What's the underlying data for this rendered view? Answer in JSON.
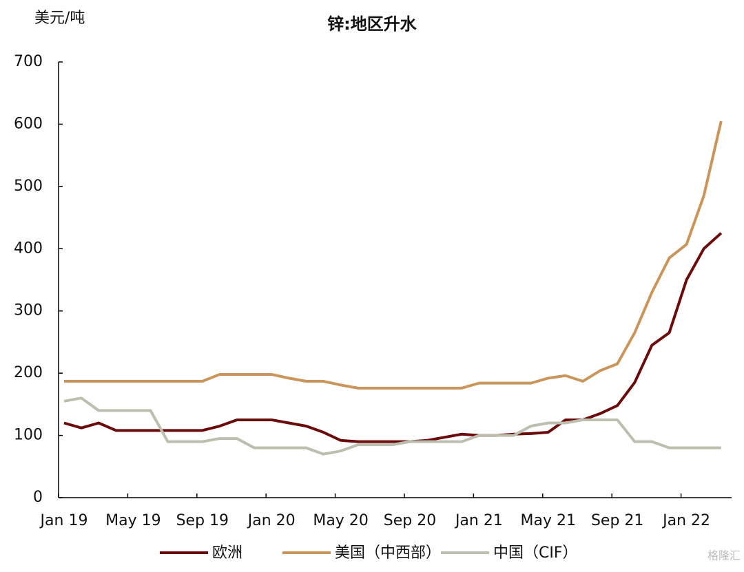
{
  "chart_data": {
    "type": "line",
    "title": "锌:地区升水",
    "y_unit": "美元/吨",
    "categories": [
      "Jan 19",
      null,
      null,
      null,
      "May 19",
      null,
      null,
      null,
      "Sep 19",
      null,
      null,
      null,
      "Jan 20",
      null,
      null,
      null,
      "May 20",
      null,
      null,
      null,
      "Sep 20",
      null,
      null,
      null,
      "Jan 21",
      null,
      null,
      null,
      "May 21",
      null,
      null,
      null,
      "Sep 21",
      null,
      null,
      null,
      "Jan 22",
      null,
      null
    ],
    "series": [
      {
        "name": "欧洲",
        "color": "#6b0a0a",
        "values": [
          120,
          112,
          120,
          108,
          108,
          108,
          108,
          108,
          108,
          115,
          125,
          125,
          125,
          120,
          115,
          105,
          92,
          90,
          90,
          90,
          90,
          92,
          97,
          102,
          100,
          100,
          102,
          103,
          105,
          125,
          125,
          135,
          148,
          185,
          245,
          265,
          350,
          400,
          425
        ]
      },
      {
        "name": "美国（中西部）",
        "color": "#c9955a",
        "values": [
          187,
          187,
          187,
          187,
          187,
          187,
          187,
          187,
          187,
          198,
          198,
          198,
          198,
          192,
          187,
          187,
          181,
          176,
          176,
          176,
          176,
          176,
          176,
          176,
          184,
          184,
          184,
          184,
          192,
          196,
          187,
          204,
          215,
          265,
          330,
          385,
          407,
          485,
          605
        ]
      },
      {
        "name": "中国（CIF）",
        "color": "#bdbdb0",
        "values": [
          155,
          160,
          140,
          140,
          140,
          140,
          90,
          90,
          90,
          95,
          95,
          80,
          80,
          80,
          80,
          70,
          75,
          85,
          85,
          85,
          90,
          90,
          90,
          90,
          100,
          100,
          100,
          115,
          120,
          120,
          125,
          125,
          125,
          90,
          90,
          80,
          80,
          80,
          80
        ]
      }
    ],
    "ylim": [
      0,
      700
    ],
    "yticks": [
      0,
      100,
      200,
      300,
      400,
      500,
      600,
      700
    ],
    "legend": "bottom",
    "watermark": "格隆汇"
  }
}
